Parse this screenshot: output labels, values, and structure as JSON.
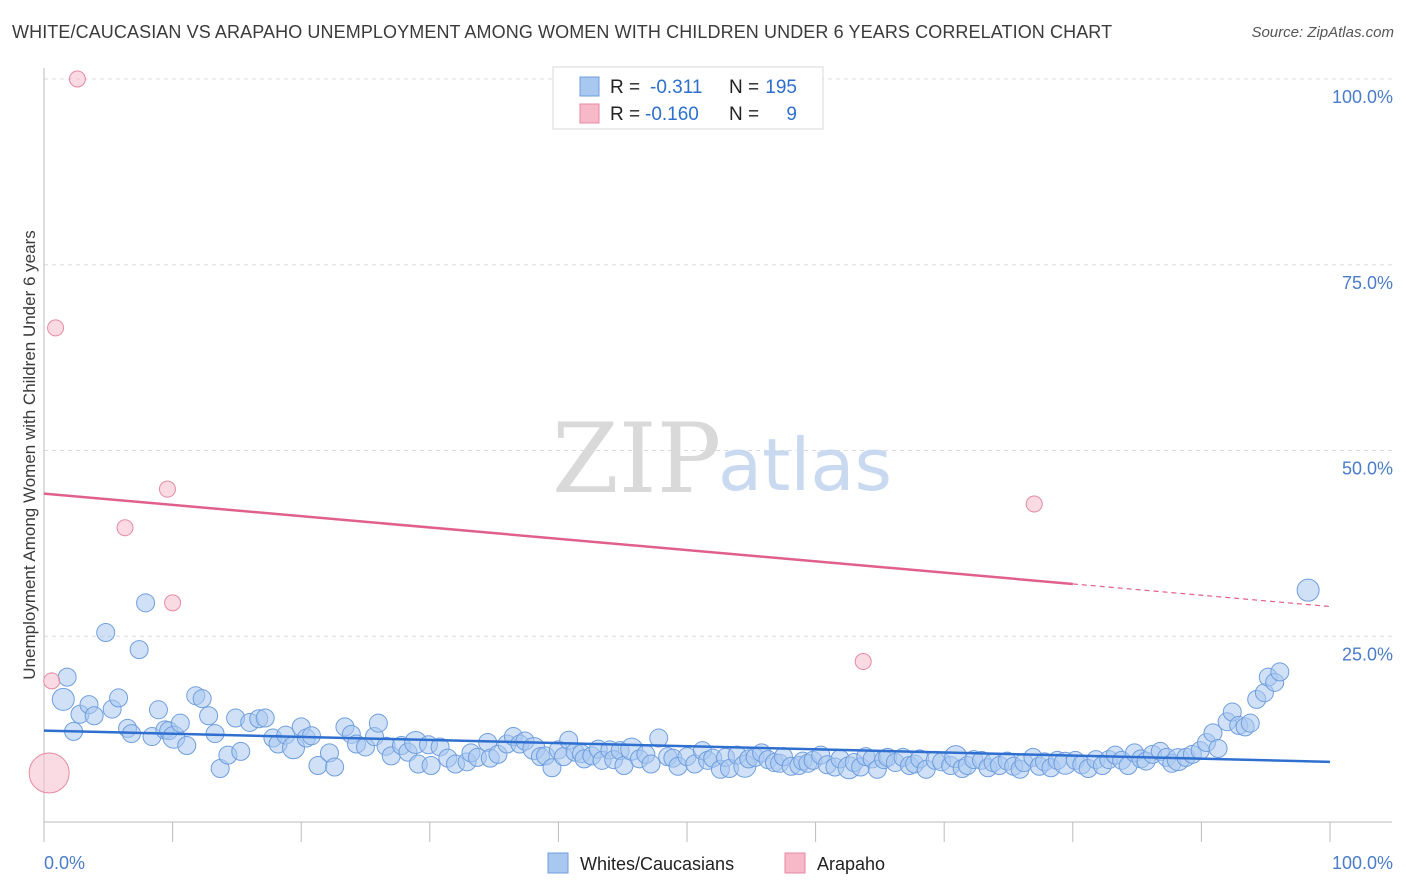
{
  "title": "WHITE/CAUCASIAN VS ARAPAHO UNEMPLOYMENT AMONG WOMEN WITH CHILDREN UNDER 6 YEARS CORRELATION CHART",
  "source": "Source: ZipAtlas.com",
  "watermark": {
    "zip": "ZIP",
    "atlas": "atlas"
  },
  "legend_top": {
    "rows": [
      {
        "r_label": "R =",
        "r_value": "-0.311",
        "n_label": "N =",
        "n_value": "195",
        "color": "#a9c8f0"
      },
      {
        "r_label": "R =",
        "r_value": "-0.160",
        "n_label": "N =",
        "n_value": "9",
        "color": "#f7b8c8"
      }
    ]
  },
  "legend_bottom": {
    "items": [
      {
        "label": "Whites/Caucasians",
        "color": "#a9c8f0"
      },
      {
        "label": "Arapaho",
        "color": "#f7b8c8"
      }
    ]
  },
  "colors": {
    "blue_fill": "#a9c8f0",
    "blue_stroke": "#6f9ede",
    "blue_line": "#2f6fcf",
    "pink_fill": "#f7c2d0",
    "pink_stroke": "#e58aa5",
    "pink_line": "#e0608a",
    "grid": "#dcdcdc",
    "tick_text": "#4a7cc9"
  },
  "chart_data": {
    "type": "scatter",
    "title": "WHITE/CAUCASIAN VS ARAPAHO UNEMPLOYMENT AMONG WOMEN WITH CHILDREN UNDER 6 YEARS CORRELATION CHART",
    "xlabel": "",
    "ylabel": "Unemployment Among Women with Children Under 6 years",
    "xlim": [
      0,
      100
    ],
    "ylim": [
      0,
      100
    ],
    "x_tick_labels": [
      "0.0%",
      "100.0%"
    ],
    "y_ticks": [
      25,
      50,
      75,
      100
    ],
    "y_tick_labels": [
      "25.0%",
      "50.0%",
      "75.0%",
      "100.0%"
    ],
    "grid": "horizontal dashed",
    "legend_placement": "top-center",
    "series": [
      {
        "name": "Whites/Caucasians",
        "r": -0.311,
        "n": 195,
        "trend": {
          "x": [
            0,
            100
          ],
          "y": [
            12.3,
            8.1
          ],
          "solid_until": 100
        },
        "points": [
          [
            1.5,
            16.5
          ],
          [
            1.8,
            19.5
          ],
          [
            2.3,
            12.2
          ],
          [
            2.8,
            14.5
          ],
          [
            3.5,
            15.8
          ],
          [
            3.9,
            14.3
          ],
          [
            4.8,
            25.5
          ],
          [
            5.3,
            15.2
          ],
          [
            5.8,
            16.7
          ],
          [
            6.5,
            12.6
          ],
          [
            6.8,
            11.9
          ],
          [
            7.4,
            23.2
          ],
          [
            7.9,
            29.5
          ],
          [
            8.4,
            11.5
          ],
          [
            8.9,
            15.1
          ],
          [
            9.4,
            12.4
          ],
          [
            9.7,
            12.3
          ],
          [
            10.1,
            11.4
          ],
          [
            10.6,
            13.3
          ],
          [
            11.1,
            10.3
          ],
          [
            11.8,
            17.0
          ],
          [
            12.3,
            16.6
          ],
          [
            12.8,
            14.3
          ],
          [
            13.3,
            11.9
          ],
          [
            13.7,
            7.2
          ],
          [
            14.3,
            9.0
          ],
          [
            14.9,
            14.0
          ],
          [
            15.3,
            9.5
          ],
          [
            16.0,
            13.4
          ],
          [
            16.7,
            13.9
          ],
          [
            17.2,
            14.0
          ],
          [
            17.8,
            11.3
          ],
          [
            18.2,
            10.5
          ],
          [
            18.8,
            11.7
          ],
          [
            19.4,
            10.0
          ],
          [
            20.0,
            12.8
          ],
          [
            20.4,
            11.3
          ],
          [
            20.8,
            11.6
          ],
          [
            21.3,
            7.6
          ],
          [
            22.2,
            9.3
          ],
          [
            22.6,
            7.4
          ],
          [
            23.4,
            12.8
          ],
          [
            23.9,
            11.8
          ],
          [
            24.3,
            10.5
          ],
          [
            25.0,
            10.1
          ],
          [
            25.7,
            11.5
          ],
          [
            26.0,
            13.3
          ],
          [
            26.6,
            10.2
          ],
          [
            27.0,
            8.9
          ],
          [
            27.8,
            10.3
          ],
          [
            28.3,
            9.4
          ],
          [
            28.9,
            10.7
          ],
          [
            29.1,
            7.8
          ],
          [
            29.9,
            10.4
          ],
          [
            30.1,
            7.6
          ],
          [
            30.8,
            10.1
          ],
          [
            31.4,
            8.6
          ],
          [
            32.0,
            7.8
          ],
          [
            32.9,
            8.1
          ],
          [
            33.2,
            9.3
          ],
          [
            33.7,
            8.7
          ],
          [
            34.5,
            10.7
          ],
          [
            34.7,
            8.6
          ],
          [
            35.3,
            9.1
          ],
          [
            36.0,
            10.5
          ],
          [
            36.5,
            11.5
          ],
          [
            37.0,
            10.5
          ],
          [
            37.4,
            10.9
          ],
          [
            38.1,
            9.9
          ],
          [
            38.6,
            8.8
          ],
          [
            39.0,
            8.9
          ],
          [
            39.5,
            7.3
          ],
          [
            40.0,
            9.7
          ],
          [
            40.4,
            8.8
          ],
          [
            40.8,
            11.0
          ],
          [
            41.3,
            9.4
          ],
          [
            41.8,
            9.2
          ],
          [
            42.0,
            8.5
          ],
          [
            42.6,
            8.9
          ],
          [
            43.1,
            9.8
          ],
          [
            43.4,
            8.3
          ],
          [
            44.0,
            9.7
          ],
          [
            44.3,
            8.4
          ],
          [
            44.8,
            9.6
          ],
          [
            45.1,
            7.6
          ],
          [
            45.7,
            9.8
          ],
          [
            46.3,
            8.5
          ],
          [
            46.8,
            9.1
          ],
          [
            47.2,
            7.8
          ],
          [
            47.8,
            11.3
          ],
          [
            48.5,
            8.8
          ],
          [
            48.9,
            8.6
          ],
          [
            49.3,
            7.5
          ],
          [
            50.0,
            8.8
          ],
          [
            50.6,
            7.8
          ],
          [
            51.2,
            9.6
          ],
          [
            51.6,
            8.3
          ],
          [
            52.0,
            8.6
          ],
          [
            52.6,
            7.1
          ],
          [
            53.0,
            8.7
          ],
          [
            53.3,
            7.2
          ],
          [
            53.9,
            9.0
          ],
          [
            54.5,
            7.5
          ],
          [
            54.8,
            8.5
          ],
          [
            55.3,
            8.7
          ],
          [
            55.8,
            9.3
          ],
          [
            56.3,
            8.4
          ],
          [
            56.8,
            8.0
          ],
          [
            57.2,
            7.9
          ],
          [
            57.5,
            8.8
          ],
          [
            58.1,
            7.5
          ],
          [
            58.7,
            7.6
          ],
          [
            59.0,
            8.2
          ],
          [
            59.4,
            7.9
          ],
          [
            59.8,
            8.3
          ],
          [
            60.4,
            9.0
          ],
          [
            60.9,
            7.7
          ],
          [
            61.5,
            7.4
          ],
          [
            61.9,
            8.5
          ],
          [
            62.6,
            7.3
          ],
          [
            63.0,
            8.0
          ],
          [
            63.5,
            7.4
          ],
          [
            63.9,
            8.8
          ],
          [
            64.4,
            8.5
          ],
          [
            64.8,
            7.1
          ],
          [
            65.3,
            8.4
          ],
          [
            65.6,
            8.7
          ],
          [
            66.2,
            8.0
          ],
          [
            66.8,
            8.7
          ],
          [
            67.3,
            7.6
          ],
          [
            67.7,
            7.8
          ],
          [
            68.1,
            8.5
          ],
          [
            68.6,
            7.1
          ],
          [
            69.3,
            8.3
          ],
          [
            69.8,
            8.1
          ],
          [
            70.5,
            7.6
          ],
          [
            70.9,
            8.8
          ],
          [
            71.4,
            7.2
          ],
          [
            71.8,
            7.6
          ],
          [
            72.3,
            8.4
          ],
          [
            72.9,
            8.3
          ],
          [
            73.4,
            7.3
          ],
          [
            73.8,
            8.0
          ],
          [
            74.3,
            7.6
          ],
          [
            74.9,
            8.2
          ],
          [
            75.4,
            7.5
          ],
          [
            75.9,
            7.1
          ],
          [
            76.2,
            8.0
          ],
          [
            76.9,
            8.7
          ],
          [
            77.4,
            7.5
          ],
          [
            77.8,
            8.1
          ],
          [
            78.3,
            7.3
          ],
          [
            78.8,
            8.3
          ],
          [
            79.4,
            7.9
          ],
          [
            80.2,
            8.3
          ],
          [
            80.7,
            7.7
          ],
          [
            81.2,
            7.2
          ],
          [
            81.8,
            8.4
          ],
          [
            82.3,
            7.6
          ],
          [
            82.8,
            8.4
          ],
          [
            83.3,
            9.0
          ],
          [
            83.8,
            8.3
          ],
          [
            84.3,
            7.6
          ],
          [
            84.8,
            9.3
          ],
          [
            85.3,
            8.5
          ],
          [
            85.7,
            8.2
          ],
          [
            86.2,
            9.1
          ],
          [
            86.8,
            9.5
          ],
          [
            87.3,
            8.7
          ],
          [
            87.7,
            7.9
          ],
          [
            88.2,
            8.4
          ],
          [
            88.8,
            8.7
          ],
          [
            89.3,
            9.1
          ],
          [
            89.9,
            9.6
          ],
          [
            90.4,
            10.7
          ],
          [
            90.9,
            12.0
          ],
          [
            91.3,
            9.9
          ],
          [
            92.0,
            13.5
          ],
          [
            92.4,
            14.8
          ],
          [
            92.9,
            13.0
          ],
          [
            93.4,
            12.8
          ],
          [
            93.8,
            13.3
          ],
          [
            94.3,
            16.5
          ],
          [
            94.9,
            17.4
          ],
          [
            95.2,
            19.5
          ],
          [
            95.7,
            18.8
          ],
          [
            96.1,
            20.2
          ],
          [
            98.3,
            31.2
          ]
        ]
      },
      {
        "name": "Arapaho",
        "r": -0.16,
        "n": 9,
        "trend": {
          "x": [
            0,
            100
          ],
          "y": [
            44.2,
            29.0
          ],
          "solid_until": 80
        },
        "points": [
          [
            2.6,
            100.0
          ],
          [
            0.9,
            66.5
          ],
          [
            9.6,
            44.8
          ],
          [
            6.3,
            39.6
          ],
          [
            10.0,
            29.5
          ],
          [
            0.6,
            19.0
          ],
          [
            63.7,
            21.6
          ],
          [
            77.0,
            42.8
          ],
          [
            0.4,
            6.6
          ]
        ]
      }
    ]
  }
}
